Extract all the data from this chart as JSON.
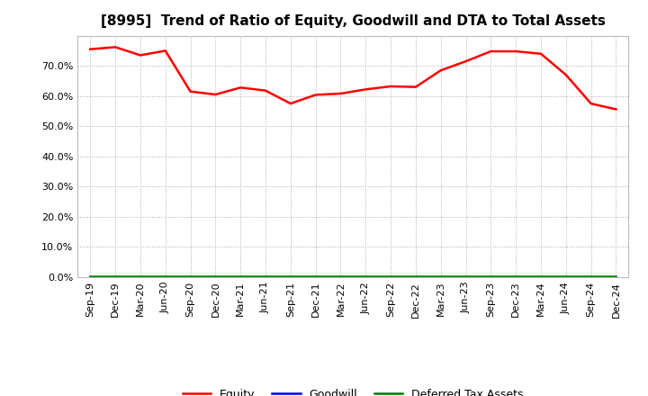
{
  "title": "[8995]  Trend of Ratio of Equity, Goodwill and DTA to Total Assets",
  "x_labels": [
    "Sep-19",
    "Dec-19",
    "Mar-20",
    "Jun-20",
    "Sep-20",
    "Dec-20",
    "Mar-21",
    "Jun-21",
    "Sep-21",
    "Dec-21",
    "Mar-22",
    "Jun-22",
    "Sep-22",
    "Dec-22",
    "Mar-23",
    "Jun-23",
    "Sep-23",
    "Dec-23",
    "Mar-24",
    "Jun-24",
    "Sep-24",
    "Dec-24"
  ],
  "equity": [
    0.755,
    0.762,
    0.735,
    0.75,
    0.615,
    0.605,
    0.628,
    0.618,
    0.575,
    0.604,
    0.608,
    0.622,
    0.632,
    0.63,
    0.685,
    0.715,
    0.748,
    0.748,
    0.74,
    0.67,
    0.575,
    0.556
  ],
  "goodwill": [
    0.0,
    0.0,
    0.0,
    0.0,
    0.0,
    0.0,
    0.0,
    0.0,
    0.0,
    0.0,
    0.0,
    0.0,
    0.0,
    0.0,
    0.0,
    0.0,
    0.0,
    0.0,
    0.0,
    0.0,
    0.0,
    0.0
  ],
  "dta": [
    0.002,
    0.002,
    0.002,
    0.002,
    0.002,
    0.002,
    0.002,
    0.002,
    0.002,
    0.002,
    0.002,
    0.002,
    0.002,
    0.002,
    0.002,
    0.002,
    0.002,
    0.002,
    0.002,
    0.002,
    0.002,
    0.002
  ],
  "equity_color": "#FF0000",
  "goodwill_color": "#0000FF",
  "dta_color": "#008000",
  "ylim": [
    0.0,
    0.8
  ],
  "yticks": [
    0.0,
    0.1,
    0.2,
    0.3,
    0.4,
    0.5,
    0.6,
    0.7
  ],
  "background_color": "#FFFFFF",
  "plot_bg_color": "#FFFFFF",
  "grid_color": "#AAAAAA",
  "title_fontsize": 11,
  "tick_fontsize": 8,
  "legend_labels": [
    "Equity",
    "Goodwill",
    "Deferred Tax Assets"
  ]
}
